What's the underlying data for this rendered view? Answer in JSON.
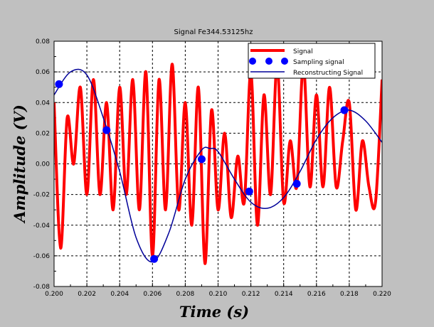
{
  "chart_data": {
    "type": "line",
    "title": "Signal Fe344.53125hz",
    "xlabel": "Time (s)",
    "ylabel": "Amplitude (V)",
    "xlim": [
      0.2,
      0.22
    ],
    "ylim": [
      -0.08,
      0.08
    ],
    "x_ticks": [
      "0.200",
      "0.202",
      "0.204",
      "0.206",
      "0.208",
      "0.210",
      "0.212",
      "0.214",
      "0.216",
      "0.218",
      "0.220"
    ],
    "y_ticks": [
      "-0.08",
      "-0.06",
      "-0.04",
      "-0.02",
      "0.00",
      "0.02",
      "0.04",
      "0.06",
      "0.08"
    ],
    "grid": true,
    "legend_position": "top-right",
    "colors": {
      "signal": "#ff0000",
      "sampling": "#0000ff",
      "reconstruction": "#000099",
      "background": "#c0c0c0",
      "plot_area": "#ffffff"
    },
    "series": [
      {
        "name": "Signal",
        "style": "line",
        "x": [
          0.2,
          0.2004,
          0.2008,
          0.2012,
          0.2016,
          0.202,
          0.2024,
          0.2028,
          0.2032,
          0.2036,
          0.204,
          0.2044,
          0.2048,
          0.2052,
          0.2056,
          0.206,
          0.2064,
          0.2068,
          0.2072,
          0.2076,
          0.208,
          0.2084,
          0.2088,
          0.2092,
          0.2096,
          0.21,
          0.2104,
          0.2108,
          0.2112,
          0.2116,
          0.212,
          0.2124,
          0.2128,
          0.2132,
          0.2136,
          0.214,
          0.2144,
          0.2148,
          0.2152,
          0.2156,
          0.216,
          0.2164,
          0.2168,
          0.2172,
          0.2176,
          0.218,
          0.2184,
          0.2188,
          0.2192,
          0.2196,
          0.22
        ],
        "y": [
          0.04,
          -0.055,
          0.03,
          0.0,
          0.05,
          -0.02,
          0.055,
          -0.02,
          0.04,
          -0.03,
          0.05,
          -0.02,
          0.055,
          -0.03,
          0.06,
          -0.06,
          0.055,
          -0.03,
          0.065,
          -0.03,
          0.04,
          -0.04,
          0.05,
          -0.065,
          0.035,
          -0.03,
          0.02,
          -0.035,
          0.005,
          -0.025,
          0.06,
          -0.04,
          0.045,
          -0.02,
          0.065,
          -0.025,
          0.015,
          -0.015,
          0.065,
          -0.015,
          0.045,
          -0.015,
          0.05,
          -0.015,
          0.015,
          0.04,
          -0.03,
          0.015,
          -0.015,
          -0.025,
          0.055
        ]
      },
      {
        "name": "Sampling signal",
        "style": "markers",
        "x": [
          0.2003,
          0.2032,
          0.2061,
          0.209,
          0.2119,
          0.2148,
          0.2177
        ],
        "y": [
          0.052,
          0.022,
          -0.062,
          0.003,
          -0.018,
          -0.013,
          0.035
        ]
      },
      {
        "name": "Reconstructing Signal",
        "style": "line",
        "x": [
          0.2,
          0.201,
          0.202,
          0.203,
          0.204,
          0.205,
          0.206,
          0.207,
          0.208,
          0.209,
          0.2095,
          0.21,
          0.211,
          0.212,
          0.213,
          0.214,
          0.215,
          0.216,
          0.217,
          0.218,
          0.219,
          0.22
        ],
        "y": [
          0.045,
          0.06,
          0.058,
          0.03,
          -0.005,
          -0.048,
          -0.064,
          -0.045,
          -0.01,
          0.009,
          0.01,
          0.008,
          -0.01,
          -0.025,
          -0.029,
          -0.022,
          -0.005,
          0.016,
          0.03,
          0.035,
          0.028,
          0.014
        ]
      }
    ]
  }
}
